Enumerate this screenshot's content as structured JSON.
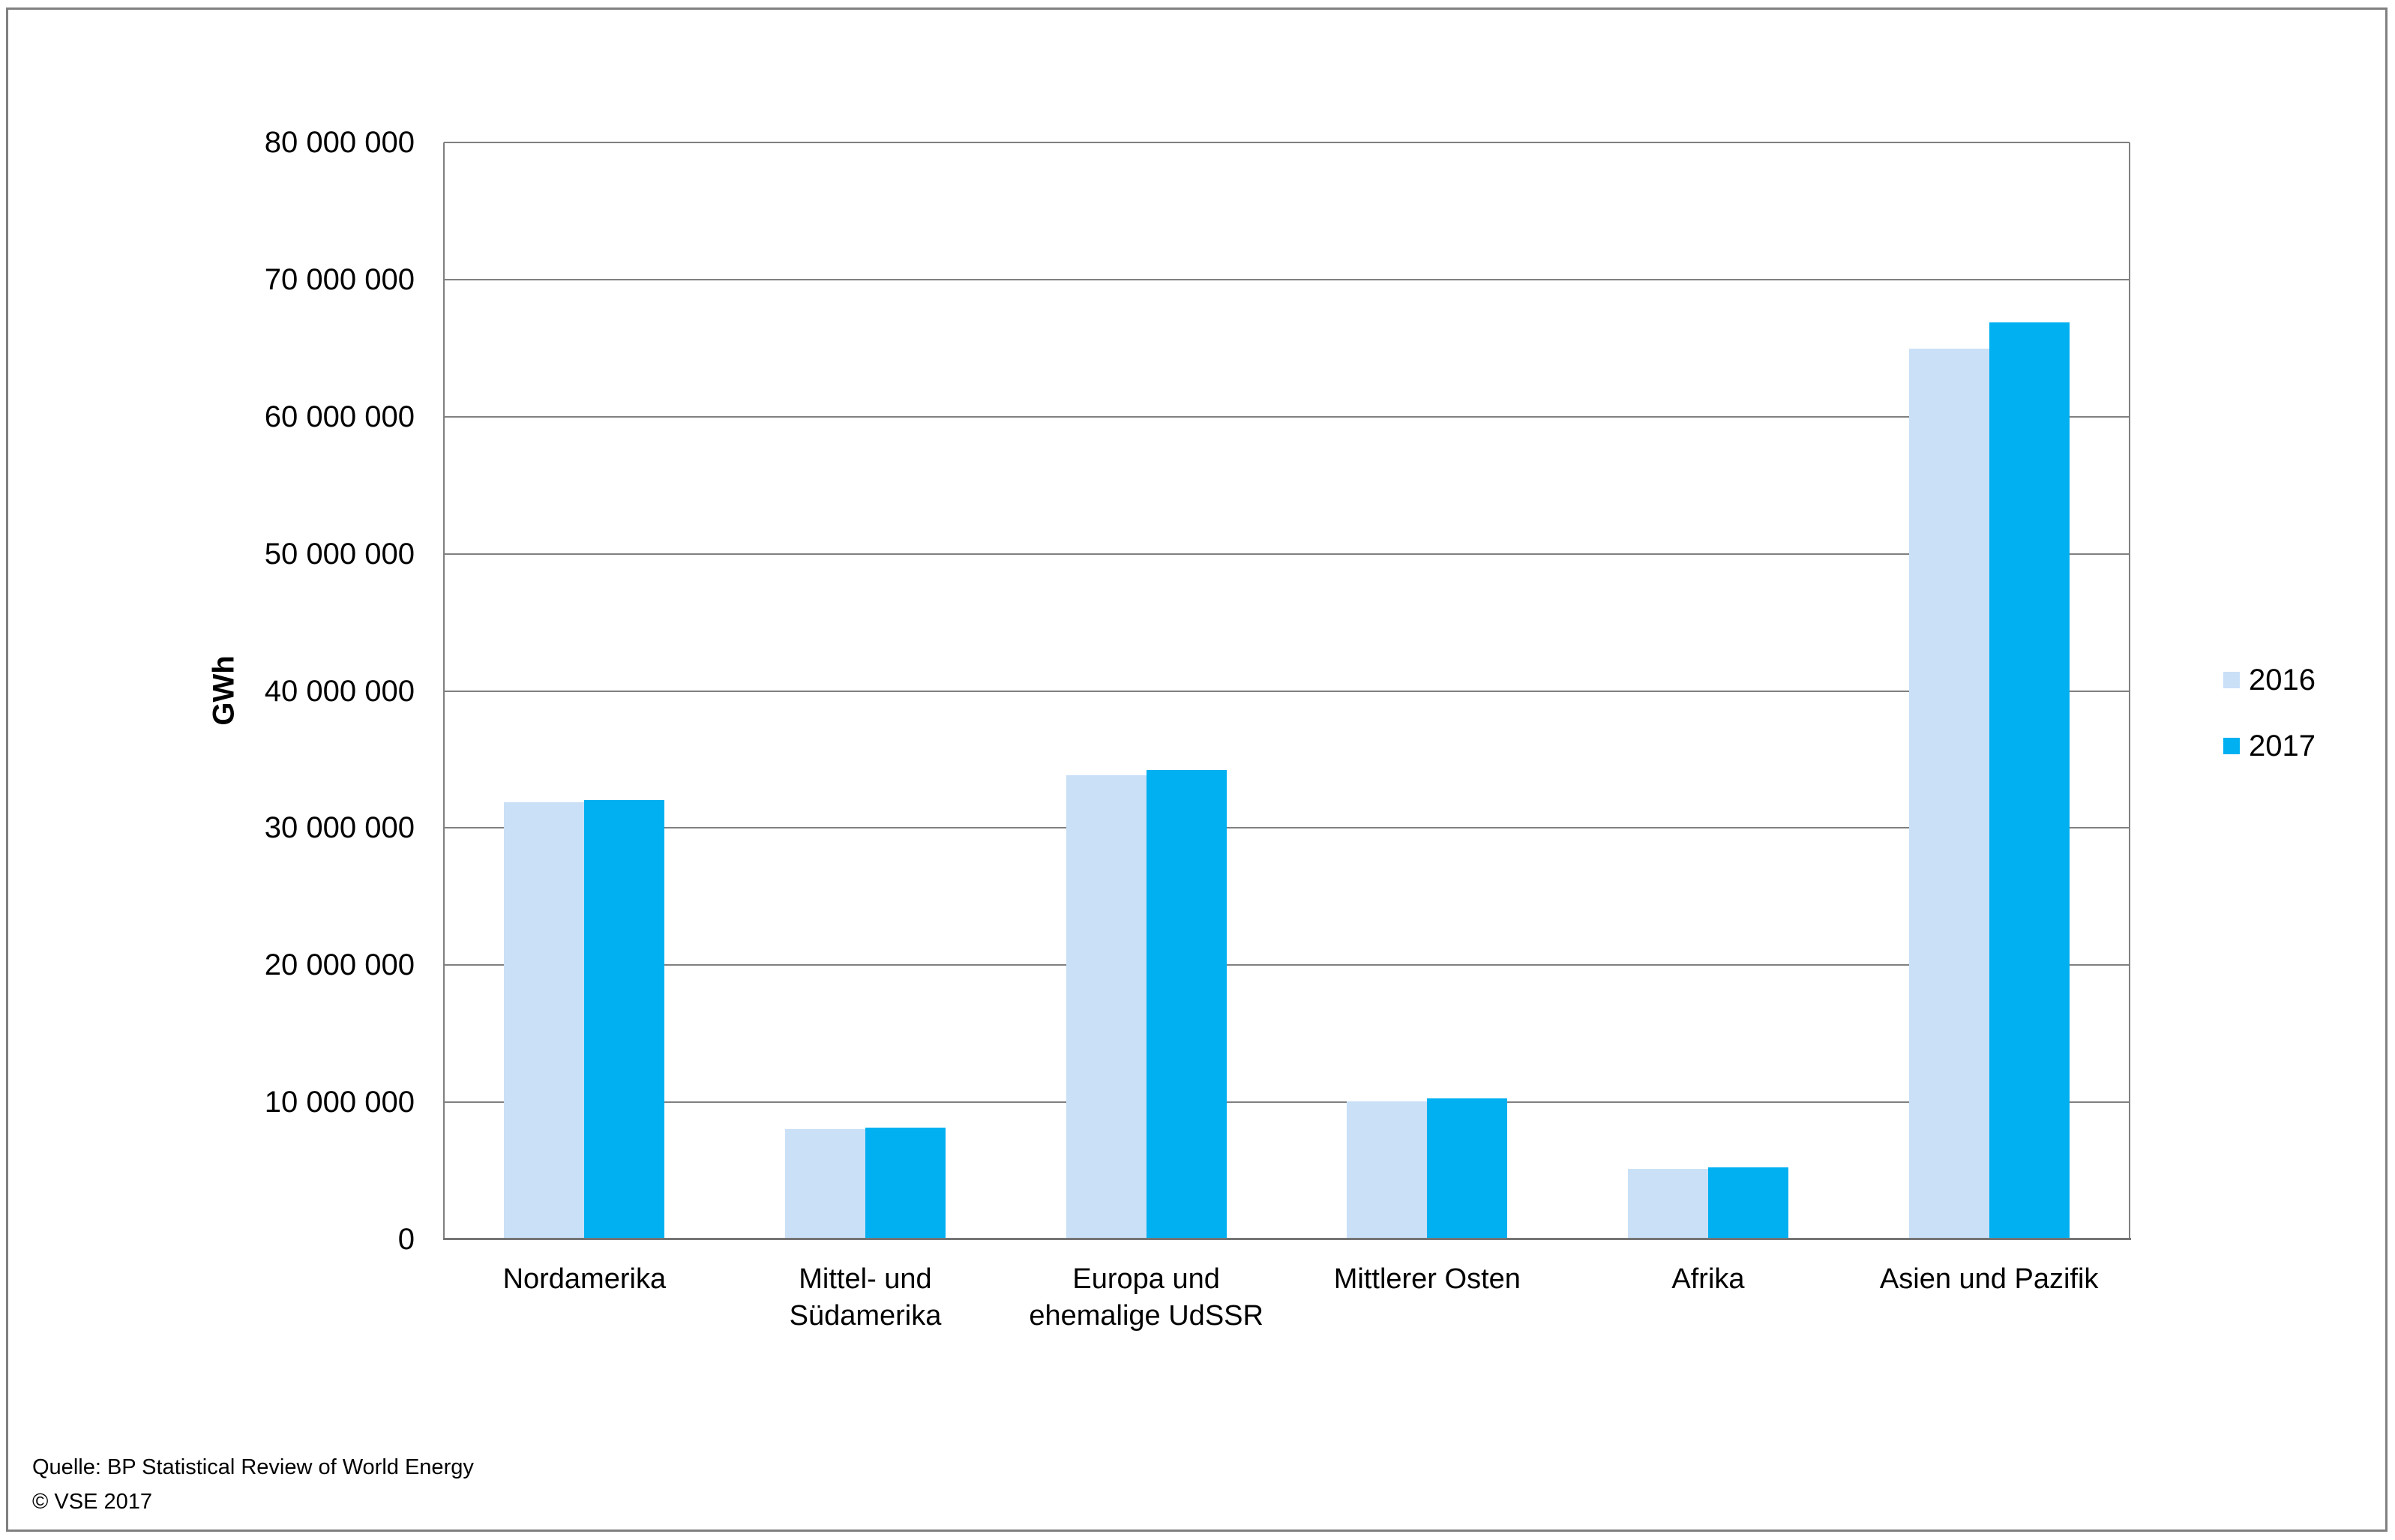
{
  "chart_data": {
    "type": "bar",
    "title": "",
    "xlabel": "",
    "ylabel": "GWh",
    "unit": "GWh",
    "categories": [
      "Nordamerika",
      "Mittel- und\nSüdamerika",
      "Europa und\nehemalige UdSSR",
      "Mittlerer Osten",
      "Afrika",
      "Asien und Pazifik"
    ],
    "series": [
      {
        "name": "2016",
        "color": "#c9e0f7",
        "values": [
          31800000,
          8000000,
          33800000,
          10000000,
          5100000,
          64900000
        ]
      },
      {
        "name": "2017",
        "color": "#00b0f0",
        "values": [
          32000000,
          8100000,
          34200000,
          10200000,
          5200000,
          66800000
        ]
      }
    ],
    "ylim": [
      0,
      80000000
    ],
    "ytick_step": 10000000,
    "ytick_labels": [
      "0",
      "10 000 000",
      "20 000 000",
      "30 000 000",
      "40 000 000",
      "50 000 000",
      "60 000 000",
      "70 000 000",
      "80 000 000"
    ],
    "grid": true,
    "legend_position": "right"
  },
  "legend": {
    "items": [
      {
        "label": "2016",
        "color": "#c9e0f7"
      },
      {
        "label": "2017",
        "color": "#00b0f0"
      }
    ]
  },
  "source": {
    "line1": "Quelle: BP Statistical Review of World Energy",
    "line2": "© VSE 2017"
  },
  "colors": {
    "grid": "#808080",
    "axis": "#757575",
    "frame": "#808080",
    "text": "#000000"
  }
}
